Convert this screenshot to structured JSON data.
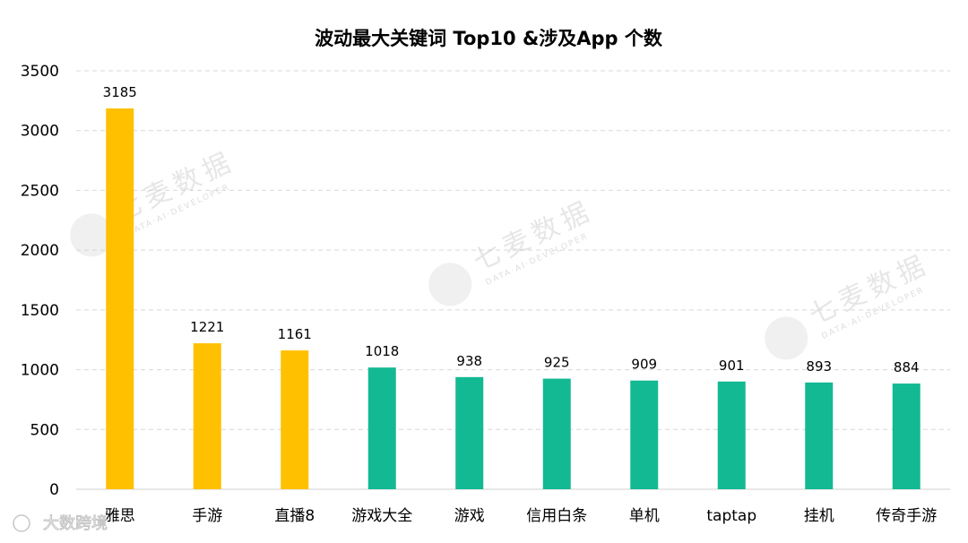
{
  "chart_data": {
    "type": "bar",
    "title": "波动最大关键词 Top10 &涉及App 个数",
    "categories": [
      "雅思",
      "手游",
      "直播8",
      "游戏大全",
      "游戏",
      "信用白条",
      "单机",
      "taptap",
      "挂机",
      "传奇手游"
    ],
    "values": [
      3185,
      1221,
      1161,
      1018,
      938,
      925,
      909,
      901,
      893,
      884
    ],
    "bar_colors": [
      "#FFC000",
      "#FFC000",
      "#FFC000",
      "#13B993",
      "#13B993",
      "#13B993",
      "#13B993",
      "#13B993",
      "#13B993",
      "#13B993"
    ],
    "ylim": [
      0,
      3500
    ],
    "yticks": [
      "0",
      "500",
      "1000",
      "1500",
      "2000",
      "2500",
      "3000",
      "3500"
    ],
    "data_labels": [
      "3185",
      "1221",
      "1161",
      "1018",
      "938",
      "925",
      "909",
      "901",
      "893",
      "884"
    ],
    "grid": "horizontal-dashed",
    "legend": "none"
  },
  "watermark": {
    "text": "七麦数据",
    "subtext": "DATA·AI·DEVELOPER",
    "corner_text": "大数跨境"
  }
}
